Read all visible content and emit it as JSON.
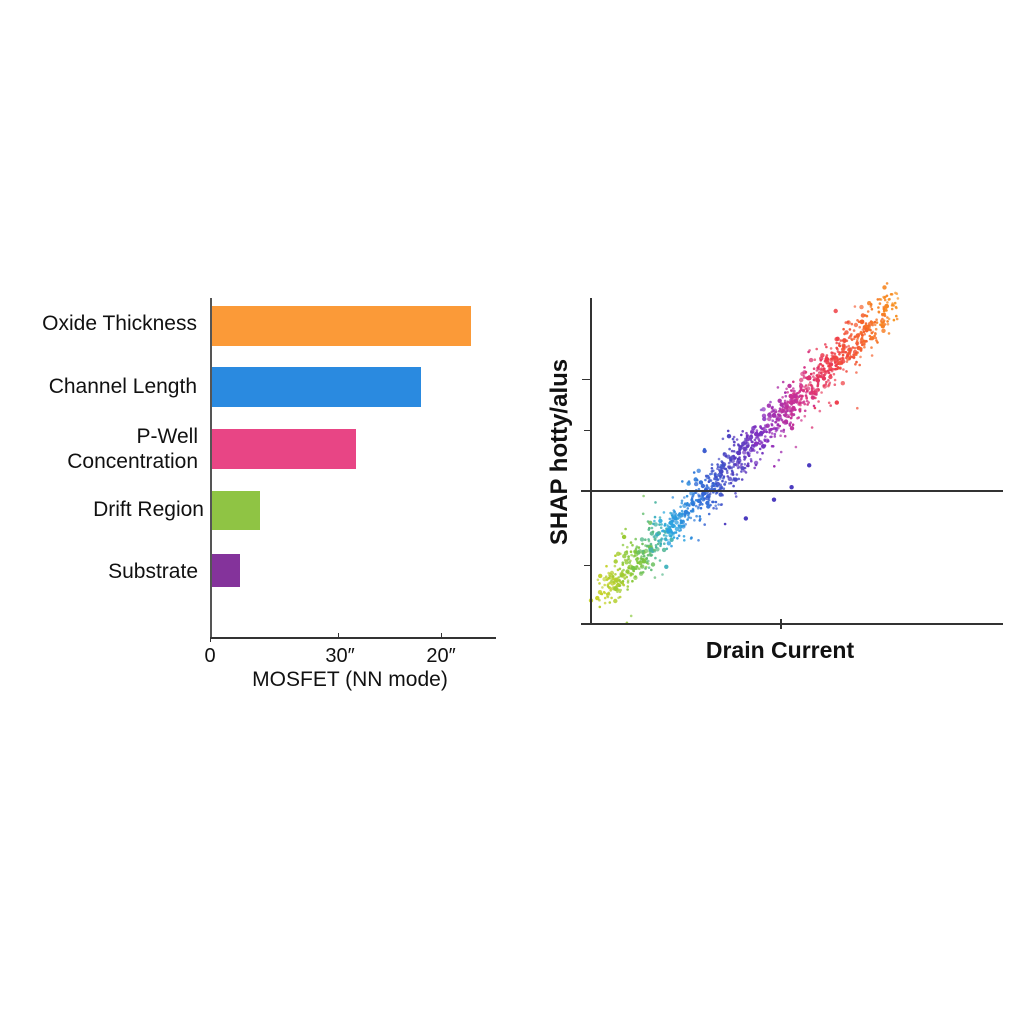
{
  "chart_data": [
    {
      "type": "bar",
      "orientation": "horizontal",
      "title": "",
      "xlabel": "MOSFET (NN mode)",
      "ylabel": "",
      "categories": [
        "Oxide Thickness",
        "Channel Length",
        "P-Well\nConcentration",
        "Drift Region",
        "Substrate"
      ],
      "values": [
        61,
        49,
        34,
        12,
        7
      ],
      "colors": [
        "#fb9a38",
        "#2a8ae0",
        "#e84585",
        "#8fc444",
        "#84339b"
      ],
      "xticks": [
        {
          "label": "0",
          "value": 0
        },
        {
          "label": "30″",
          "value": 30
        },
        {
          "label": "20″",
          "value": 54
        }
      ],
      "xlim": [
        0,
        67
      ],
      "grid": false,
      "legend": null
    },
    {
      "type": "scatter",
      "title": "",
      "xlabel": "Drain Current",
      "ylabel": "SHAP hotty/alus",
      "x_range": [
        0,
        100
      ],
      "y_range": [
        -100,
        100
      ],
      "zero_line": true,
      "grid": false,
      "legend": null,
      "trend": "strong positive linear relationship; color gradient from yellow-green (low) through green, cyan, blue, indigo, purple, magenta, red to orange (high)",
      "color_stops": [
        "#c8d22a",
        "#7cc63a",
        "#29a9e0",
        "#2f6fd8",
        "#4b3bbf",
        "#8a2fc0",
        "#d0308f",
        "#ee3a4a",
        "#f5602a",
        "#f7931e"
      ],
      "points_sample": [
        {
          "x": 5,
          "y": -85
        },
        {
          "x": 10,
          "y": -72
        },
        {
          "x": 15,
          "y": -60
        },
        {
          "x": 20,
          "y": -48
        },
        {
          "x": 25,
          "y": -36
        },
        {
          "x": 30,
          "y": -24
        },
        {
          "x": 35,
          "y": -10
        },
        {
          "x": 40,
          "y": 2
        },
        {
          "x": 45,
          "y": 14
        },
        {
          "x": 50,
          "y": 26
        },
        {
          "x": 55,
          "y": 38
        },
        {
          "x": 60,
          "y": 50
        },
        {
          "x": 65,
          "y": 62
        },
        {
          "x": 70,
          "y": 74
        },
        {
          "x": 75,
          "y": 86
        },
        {
          "x": 82,
          "y": 96
        }
      ],
      "outliers": [
        {
          "x": 55,
          "y": -20
        },
        {
          "x": 50,
          "y": -28
        },
        {
          "x": 60,
          "y": -6
        },
        {
          "x": 42,
          "y": -40
        }
      ]
    }
  ],
  "bar_chart": {
    "labels": [
      "Oxide Thickness",
      "Channel Length",
      "P-Well\nConcentration",
      "Drift Region",
      "Substrate"
    ],
    "tick_labels": [
      "0",
      "30″",
      "20″"
    ],
    "xlabel": "MOSFET (NN mode)"
  },
  "scatter_chart": {
    "ylabel": "SHAP hotty/alus",
    "xlabel": "Drain Current"
  }
}
